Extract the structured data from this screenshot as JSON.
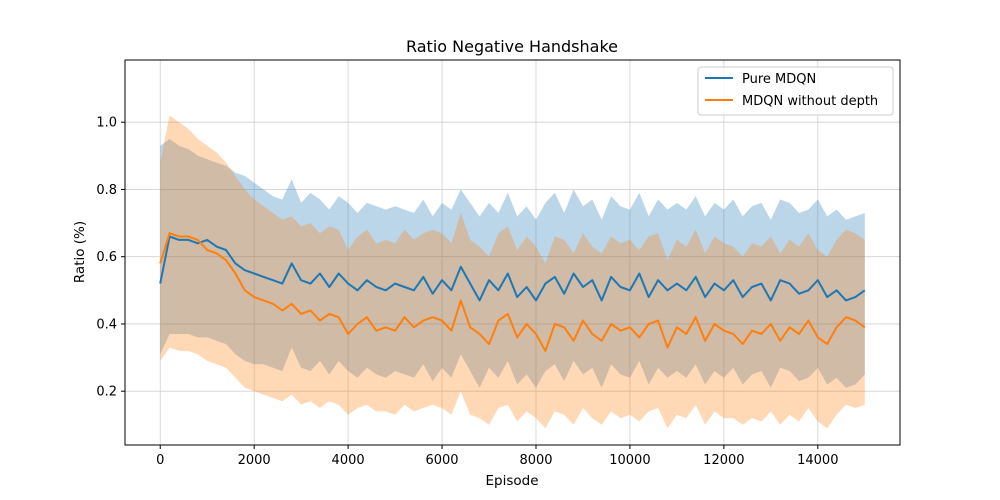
{
  "chart_data": {
    "type": "line",
    "title": "Ratio Negative Handshake",
    "xlabel": "Episode",
    "ylabel": "Ratio (%)",
    "xlim": [
      -750,
      15750
    ],
    "ylim": [
      0.04,
      1.185
    ],
    "x_ticks": [
      0,
      2000,
      4000,
      6000,
      8000,
      10000,
      12000,
      14000
    ],
    "y_ticks": [
      0.2,
      0.4,
      0.6,
      0.8,
      1.0
    ],
    "y_tick_labels": [
      "0.2",
      "0.4",
      "0.6",
      "0.8",
      "1.0"
    ],
    "grid": true,
    "legend_position": "top-right",
    "series": [
      {
        "name": "Pure MDQN",
        "color": "#1f77b4",
        "band_color": "#1f77b4",
        "x": [
          0,
          200,
          400,
          600,
          800,
          1000,
          1200,
          1400,
          1600,
          1800,
          2000,
          2200,
          2400,
          2600,
          2800,
          3000,
          3200,
          3400,
          3600,
          3800,
          4000,
          4200,
          4400,
          4600,
          4800,
          5000,
          5200,
          5400,
          5600,
          5800,
          6000,
          6200,
          6400,
          6600,
          6800,
          7000,
          7200,
          7400,
          7600,
          7800,
          8000,
          8200,
          8400,
          8600,
          8800,
          9000,
          9200,
          9400,
          9600,
          9800,
          10000,
          10200,
          10400,
          10600,
          10800,
          11000,
          11200,
          11400,
          11600,
          11800,
          12000,
          12200,
          12400,
          12600,
          12800,
          13000,
          13200,
          13400,
          13600,
          13800,
          14000,
          14200,
          14400,
          14600,
          14800,
          15000
        ],
        "y": [
          0.52,
          0.66,
          0.65,
          0.65,
          0.64,
          0.65,
          0.63,
          0.62,
          0.58,
          0.56,
          0.55,
          0.54,
          0.53,
          0.52,
          0.58,
          0.53,
          0.52,
          0.55,
          0.51,
          0.55,
          0.52,
          0.5,
          0.53,
          0.51,
          0.5,
          0.52,
          0.51,
          0.5,
          0.54,
          0.49,
          0.53,
          0.5,
          0.57,
          0.52,
          0.47,
          0.53,
          0.5,
          0.55,
          0.48,
          0.51,
          0.47,
          0.52,
          0.54,
          0.49,
          0.55,
          0.51,
          0.53,
          0.47,
          0.54,
          0.51,
          0.5,
          0.55,
          0.48,
          0.53,
          0.5,
          0.52,
          0.5,
          0.54,
          0.48,
          0.52,
          0.5,
          0.53,
          0.48,
          0.51,
          0.52,
          0.47,
          0.53,
          0.52,
          0.49,
          0.5,
          0.53,
          0.48,
          0.5,
          0.47,
          0.48,
          0.5
        ],
        "upper": [
          0.93,
          0.95,
          0.93,
          0.92,
          0.9,
          0.89,
          0.88,
          0.87,
          0.85,
          0.84,
          0.82,
          0.8,
          0.78,
          0.77,
          0.83,
          0.76,
          0.79,
          0.77,
          0.74,
          0.78,
          0.76,
          0.73,
          0.76,
          0.75,
          0.74,
          0.75,
          0.74,
          0.73,
          0.77,
          0.72,
          0.76,
          0.74,
          0.8,
          0.76,
          0.72,
          0.76,
          0.73,
          0.79,
          0.72,
          0.75,
          0.71,
          0.76,
          0.79,
          0.73,
          0.8,
          0.75,
          0.77,
          0.71,
          0.78,
          0.75,
          0.74,
          0.79,
          0.72,
          0.77,
          0.74,
          0.76,
          0.74,
          0.78,
          0.72,
          0.76,
          0.74,
          0.77,
          0.72,
          0.75,
          0.76,
          0.71,
          0.77,
          0.76,
          0.73,
          0.74,
          0.77,
          0.72,
          0.74,
          0.71,
          0.72,
          0.73
        ],
        "lower": [
          0.31,
          0.37,
          0.37,
          0.37,
          0.36,
          0.36,
          0.35,
          0.34,
          0.31,
          0.29,
          0.28,
          0.28,
          0.27,
          0.26,
          0.33,
          0.27,
          0.26,
          0.29,
          0.25,
          0.29,
          0.26,
          0.24,
          0.27,
          0.25,
          0.24,
          0.26,
          0.25,
          0.24,
          0.28,
          0.23,
          0.27,
          0.24,
          0.31,
          0.26,
          0.21,
          0.27,
          0.24,
          0.29,
          0.22,
          0.25,
          0.21,
          0.26,
          0.28,
          0.23,
          0.29,
          0.25,
          0.27,
          0.21,
          0.28,
          0.25,
          0.24,
          0.29,
          0.22,
          0.27,
          0.24,
          0.26,
          0.24,
          0.28,
          0.22,
          0.26,
          0.24,
          0.27,
          0.22,
          0.25,
          0.26,
          0.21,
          0.27,
          0.26,
          0.23,
          0.24,
          0.27,
          0.22,
          0.24,
          0.21,
          0.22,
          0.25
        ]
      },
      {
        "name": "MDQN without depth",
        "color": "#ff7f0e",
        "band_color": "#ff7f0e",
        "x": [
          0,
          200,
          400,
          600,
          800,
          1000,
          1200,
          1400,
          1600,
          1800,
          2000,
          2200,
          2400,
          2600,
          2800,
          3000,
          3200,
          3400,
          3600,
          3800,
          4000,
          4200,
          4400,
          4600,
          4800,
          5000,
          5200,
          5400,
          5600,
          5800,
          6000,
          6200,
          6400,
          6600,
          6800,
          7000,
          7200,
          7400,
          7600,
          7800,
          8000,
          8200,
          8400,
          8600,
          8800,
          9000,
          9200,
          9400,
          9600,
          9800,
          10000,
          10200,
          10400,
          10600,
          10800,
          11000,
          11200,
          11400,
          11600,
          11800,
          12000,
          12200,
          12400,
          12600,
          12800,
          13000,
          13200,
          13400,
          13600,
          13800,
          14000,
          14200,
          14400,
          14600,
          14800,
          15000
        ],
        "y": [
          0.58,
          0.67,
          0.66,
          0.66,
          0.65,
          0.62,
          0.61,
          0.59,
          0.55,
          0.5,
          0.48,
          0.47,
          0.46,
          0.44,
          0.46,
          0.43,
          0.44,
          0.41,
          0.43,
          0.42,
          0.37,
          0.4,
          0.42,
          0.38,
          0.39,
          0.38,
          0.42,
          0.39,
          0.41,
          0.42,
          0.41,
          0.38,
          0.47,
          0.39,
          0.37,
          0.34,
          0.41,
          0.43,
          0.36,
          0.4,
          0.37,
          0.32,
          0.4,
          0.39,
          0.35,
          0.41,
          0.37,
          0.35,
          0.4,
          0.38,
          0.39,
          0.36,
          0.4,
          0.41,
          0.33,
          0.39,
          0.37,
          0.42,
          0.35,
          0.4,
          0.38,
          0.37,
          0.34,
          0.38,
          0.37,
          0.4,
          0.35,
          0.39,
          0.37,
          0.41,
          0.36,
          0.34,
          0.39,
          0.42,
          0.41,
          0.39
        ],
        "upper": [
          0.88,
          1.02,
          1.0,
          0.98,
          0.95,
          0.93,
          0.91,
          0.88,
          0.84,
          0.8,
          0.77,
          0.75,
          0.73,
          0.71,
          0.72,
          0.69,
          0.7,
          0.67,
          0.69,
          0.68,
          0.62,
          0.66,
          0.68,
          0.64,
          0.65,
          0.64,
          0.68,
          0.65,
          0.67,
          0.68,
          0.67,
          0.64,
          0.73,
          0.65,
          0.63,
          0.6,
          0.67,
          0.69,
          0.62,
          0.66,
          0.63,
          0.58,
          0.66,
          0.65,
          0.61,
          0.67,
          0.63,
          0.61,
          0.66,
          0.64,
          0.65,
          0.62,
          0.66,
          0.67,
          0.59,
          0.65,
          0.63,
          0.68,
          0.61,
          0.66,
          0.64,
          0.63,
          0.6,
          0.64,
          0.63,
          0.66,
          0.61,
          0.65,
          0.63,
          0.67,
          0.62,
          0.6,
          0.65,
          0.68,
          0.67,
          0.65
        ],
        "lower": [
          0.29,
          0.33,
          0.32,
          0.32,
          0.31,
          0.29,
          0.28,
          0.27,
          0.24,
          0.21,
          0.2,
          0.19,
          0.18,
          0.17,
          0.19,
          0.16,
          0.17,
          0.15,
          0.17,
          0.16,
          0.13,
          0.15,
          0.16,
          0.14,
          0.14,
          0.13,
          0.16,
          0.14,
          0.15,
          0.16,
          0.15,
          0.13,
          0.2,
          0.13,
          0.12,
          0.1,
          0.15,
          0.16,
          0.11,
          0.14,
          0.12,
          0.09,
          0.14,
          0.13,
          0.1,
          0.15,
          0.12,
          0.1,
          0.14,
          0.12,
          0.13,
          0.11,
          0.14,
          0.15,
          0.09,
          0.13,
          0.12,
          0.16,
          0.1,
          0.14,
          0.12,
          0.12,
          0.1,
          0.12,
          0.11,
          0.14,
          0.1,
          0.13,
          0.11,
          0.15,
          0.11,
          0.09,
          0.13,
          0.16,
          0.15,
          0.16
        ]
      }
    ]
  }
}
